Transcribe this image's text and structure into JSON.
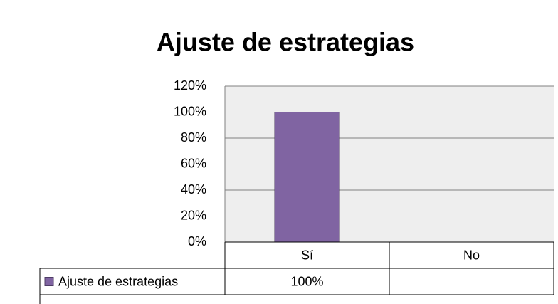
{
  "chart_data": {
    "type": "bar",
    "title": "Ajuste de estrategias",
    "categories": [
      "Sí",
      "No"
    ],
    "series": [
      {
        "name": "Ajuste de estrategias",
        "color": "#8064a2",
        "values": [
          100,
          null
        ],
        "value_labels": [
          "100%",
          null
        ]
      }
    ],
    "ylim": [
      0,
      120
    ],
    "yticks": [
      {
        "value": 0,
        "label": "0%"
      },
      {
        "value": 20,
        "label": "20%"
      },
      {
        "value": 40,
        "label": "40%"
      },
      {
        "value": 60,
        "label": "60%"
      },
      {
        "value": 80,
        "label": "80%"
      },
      {
        "value": 100,
        "label": "100%"
      },
      {
        "value": 120,
        "label": "120%"
      }
    ],
    "grid": true,
    "legend": "data-table"
  }
}
